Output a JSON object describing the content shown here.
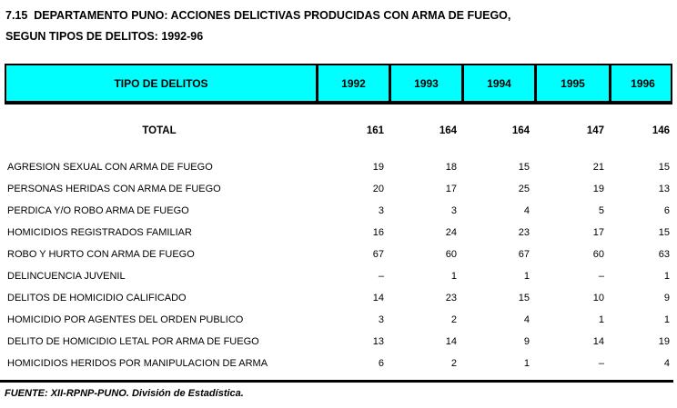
{
  "title": {
    "line1": "7.15  DEPARTAMENTO PUNO: ACCIONES DELICTIVAS PRODUCIDAS CON ARMA DE FUEGO,",
    "line2": "SEGUN TIPOS DE DELITOS: 1992-96"
  },
  "table": {
    "header": {
      "label_column": "TIPO DE DELITOS",
      "year_columns": [
        "1992",
        "1993",
        "1994",
        "1995",
        "1996"
      ]
    },
    "total_row": {
      "label": "TOTAL",
      "values": [
        "161",
        "164",
        "164",
        "147",
        "146"
      ]
    },
    "rows": [
      {
        "label": "AGRESION SEXUAL CON ARMA DE FUEGO",
        "values": [
          "19",
          "18",
          "15",
          "21",
          "15"
        ]
      },
      {
        "label": "PERSONAS HERIDAS CON ARMA DE FUEGO",
        "values": [
          "20",
          "17",
          "25",
          "19",
          "13"
        ]
      },
      {
        "label": "PERDICA Y/O ROBO ARMA DE FUEGO",
        "values": [
          "3",
          "3",
          "4",
          "5",
          "6"
        ]
      },
      {
        "label": "HOMICIDIOS REGISTRADOS FAMILIAR",
        "values": [
          "16",
          "24",
          "23",
          "17",
          "15"
        ]
      },
      {
        "label": "ROBO Y HURTO CON ARMA DE FUEGO",
        "values": [
          "67",
          "60",
          "67",
          "60",
          "63"
        ]
      },
      {
        "label": "DELINCUENCIA JUVENIL",
        "values": [
          "–",
          "1",
          "1",
          "–",
          "1"
        ]
      },
      {
        "label": "DELITOS DE HOMICIDIO CALIFICADO",
        "values": [
          "14",
          "23",
          "15",
          "10",
          "9"
        ]
      },
      {
        "label": "HOMICIDIO POR AGENTES DEL ORDEN PUBLICO",
        "values": [
          "3",
          "2",
          "4",
          "1",
          "1"
        ]
      },
      {
        "label": "DELITO DE HOMICIDIO LETAL POR ARMA DE FUEGO",
        "values": [
          "13",
          "14",
          "9",
          "14",
          "19"
        ]
      },
      {
        "label": "HOMICIDIOS HERIDOS POR MANIPULACION DE ARMA",
        "values": [
          "6",
          "2",
          "1",
          "–",
          "4"
        ]
      }
    ]
  },
  "footer": {
    "source": "FUENTE: XII-RPNP-PUNO. División de Estadística."
  },
  "colors": {
    "header_background": "#00FFFF",
    "border": "#000000",
    "text": "#000000",
    "page_background": "#FFFFFF"
  }
}
